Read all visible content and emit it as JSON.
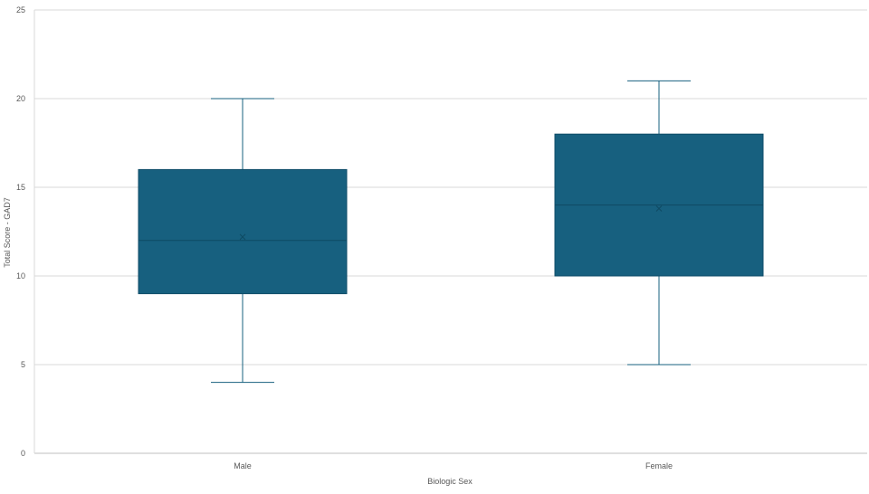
{
  "chart_data": {
    "type": "box",
    "xlabel": "Biologic Sex",
    "ylabel": "Total Score - GAD7",
    "ylim": [
      0,
      25
    ],
    "yticks": [
      0,
      5,
      10,
      15,
      20,
      25
    ],
    "grid": true,
    "categories": [
      "Male",
      "Female"
    ],
    "boxes": [
      {
        "category": "Male",
        "min": 4,
        "q1": 9,
        "median": 12,
        "q3": 16,
        "max": 20,
        "mean": 12.2
      },
      {
        "category": "Female",
        "min": 5,
        "q1": 10,
        "median": 14,
        "q3": 18,
        "max": 21,
        "mean": 13.8
      }
    ],
    "colors": {
      "box": "#17607f",
      "whisker": "#17607f",
      "grid": "#d9d9d9",
      "axis": "#bfbfbf"
    }
  }
}
